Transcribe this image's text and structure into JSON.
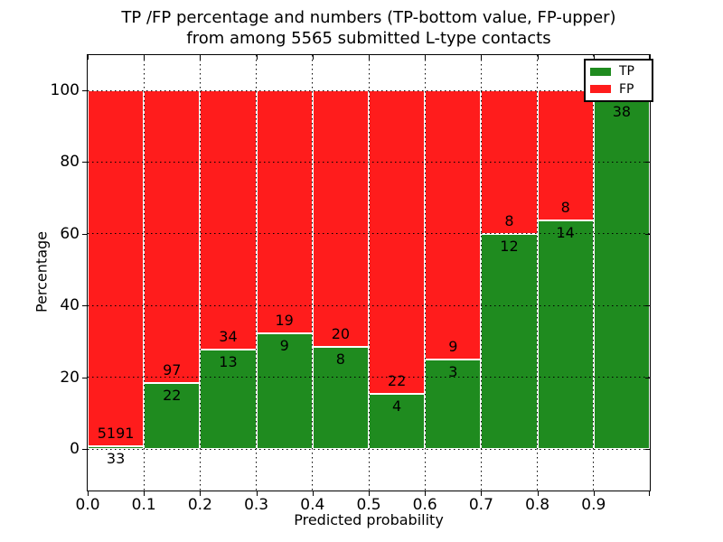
{
  "figure": {
    "title_line1": "TP /FP percentage and numbers (TP-bottom value, FP-upper)",
    "title_line2": "from among 5565 submitted L-type contacts",
    "xlabel": "Predicted probability",
    "ylabel": "Percentage"
  },
  "legend": {
    "items": [
      {
        "label": "TP",
        "color": "#1f8b1f"
      },
      {
        "label": "FP",
        "color": "#ff1c1c"
      }
    ]
  },
  "chart_data": {
    "type": "bar",
    "subtype": "stacked-percentage-histogram",
    "title": "TP /FP percentage and numbers (TP-bottom value, FP-upper) from among 5565 submitted L-type contacts",
    "xlabel": "Predicted probability",
    "ylabel": "Percentage",
    "xlim": [
      0.0,
      1.0
    ],
    "ylim": [
      -12,
      110
    ],
    "x_tick_labels": [
      "0.0",
      "0.1",
      "0.2",
      "0.3",
      "0.4",
      "0.5",
      "0.6",
      "0.7",
      "0.8",
      "0.9"
    ],
    "y_tick_values": [
      0,
      20,
      40,
      60,
      80,
      100
    ],
    "y_tick_labels": [
      "0",
      "20",
      "40",
      "60",
      "80",
      "100"
    ],
    "grid": "dotted-black-over-bars",
    "legend_position": "upper-right",
    "total_contacts": 5565,
    "series": [
      {
        "name": "TP",
        "color": "#1f8b1f"
      },
      {
        "name": "FP",
        "color": "#ff1c1c"
      }
    ],
    "bins": [
      {
        "range": [
          0.0,
          0.1
        ],
        "tp": 33,
        "fp": 5191,
        "tp_pct": 0.63,
        "tp_label": "33",
        "fp_label": "5191"
      },
      {
        "range": [
          0.1,
          0.2
        ],
        "tp": 22,
        "fp": 97,
        "tp_pct": 18.49,
        "tp_label": "22",
        "fp_label": "97"
      },
      {
        "range": [
          0.2,
          0.3
        ],
        "tp": 13,
        "fp": 34,
        "tp_pct": 27.66,
        "tp_label": "13",
        "fp_label": "34"
      },
      {
        "range": [
          0.3,
          0.4
        ],
        "tp": 9,
        "fp": 19,
        "tp_pct": 32.14,
        "tp_label": "9",
        "fp_label": "19"
      },
      {
        "range": [
          0.4,
          0.5
        ],
        "tp": 8,
        "fp": 20,
        "tp_pct": 28.57,
        "tp_label": "8",
        "fp_label": "20"
      },
      {
        "range": [
          0.5,
          0.6
        ],
        "tp": 4,
        "fp": 22,
        "tp_pct": 15.38,
        "tp_label": "4",
        "fp_label": "22"
      },
      {
        "range": [
          0.6,
          0.7
        ],
        "tp": 3,
        "fp": 9,
        "tp_pct": 25.0,
        "tp_label": "3",
        "fp_label": "9"
      },
      {
        "range": [
          0.7,
          0.8
        ],
        "tp": 12,
        "fp": 8,
        "tp_pct": 60.0,
        "tp_label": "12",
        "fp_label": "8"
      },
      {
        "range": [
          0.8,
          0.9
        ],
        "tp": 14,
        "fp": 8,
        "tp_pct": 63.64,
        "tp_label": "14",
        "fp_label": "8"
      },
      {
        "range": [
          0.9,
          1.0
        ],
        "tp": 38,
        "fp": 1,
        "tp_pct": 97.44,
        "tp_label": "38",
        "fp_label": ""
      }
    ]
  }
}
